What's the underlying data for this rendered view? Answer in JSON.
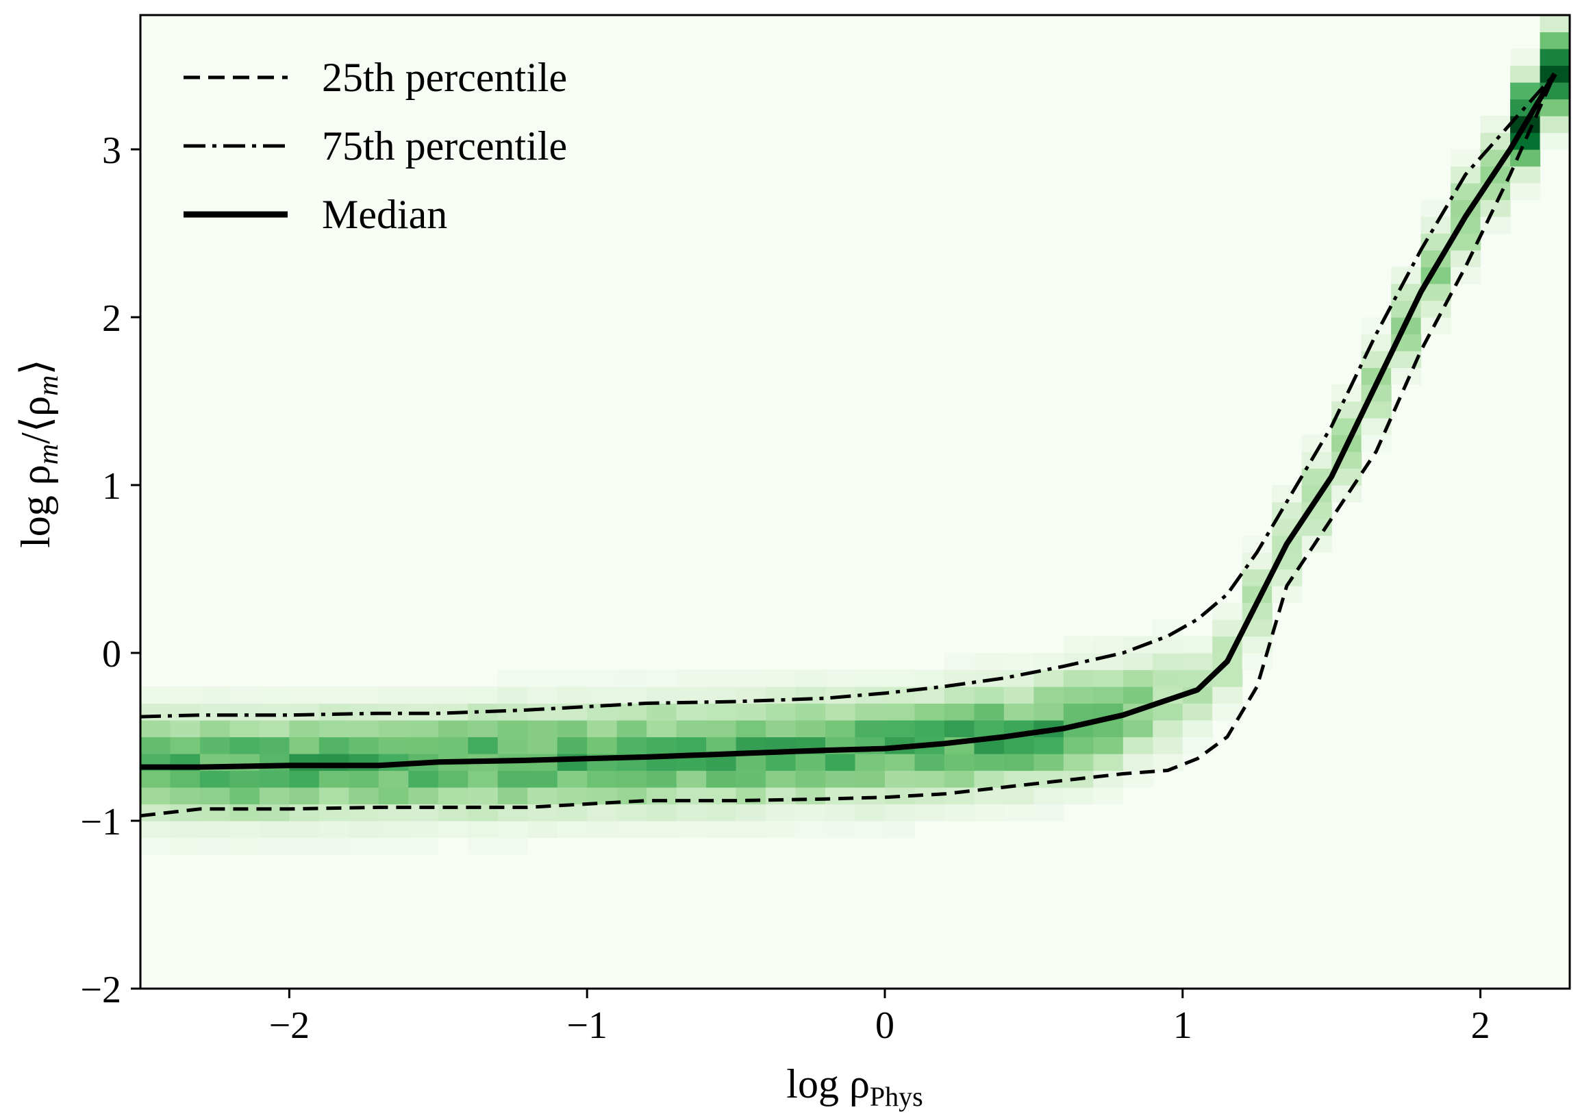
{
  "chart_data": {
    "type": "heatmap",
    "title": "",
    "xlabel": {
      "base": "log ρ",
      "subscript": "Phys"
    },
    "ylabel": {
      "prefix": "log ρ",
      "sub1": "m",
      "mid": "/⟨ρ",
      "sub2": "m",
      "suffix": "⟩"
    },
    "xlim": [
      -2.5,
      2.3
    ],
    "ylim": [
      -2,
      3.8
    ],
    "xticks": [
      {
        "value": -2,
        "label": "−2"
      },
      {
        "value": -1,
        "label": "−1"
      },
      {
        "value": 0,
        "label": "0"
      },
      {
        "value": 1,
        "label": "1"
      },
      {
        "value": 2,
        "label": "2"
      }
    ],
    "yticks": [
      {
        "value": -2,
        "label": "−2"
      },
      {
        "value": -1,
        "label": "−1"
      },
      {
        "value": 0,
        "label": "0"
      },
      {
        "value": 1,
        "label": "1"
      },
      {
        "value": 2,
        "label": "2"
      },
      {
        "value": 3,
        "label": "3"
      }
    ],
    "grid": false,
    "legend_position": "top-left",
    "colormap": "Greens",
    "background_color": "#f7fcf5",
    "bins": {
      "x_step": 0.1,
      "y_step": 0.1
    },
    "series": [
      {
        "name": "25th percentile",
        "style": "dashed",
        "x": [
          -2.5,
          -2.3,
          -2.0,
          -1.7,
          -1.5,
          -1.2,
          -1.0,
          -0.8,
          -0.5,
          -0.2,
          0.0,
          0.2,
          0.4,
          0.6,
          0.8,
          0.95,
          1.05,
          1.15,
          1.25,
          1.35,
          1.5,
          1.65,
          1.8,
          1.95,
          2.1,
          2.25
        ],
        "values": [
          -0.97,
          -0.93,
          -0.93,
          -0.92,
          -0.92,
          -0.92,
          -0.9,
          -0.88,
          -0.88,
          -0.87,
          -0.86,
          -0.84,
          -0.8,
          -0.76,
          -0.72,
          -0.7,
          -0.63,
          -0.5,
          -0.2,
          0.4,
          0.8,
          1.2,
          1.8,
          2.3,
          2.85,
          3.45
        ]
      },
      {
        "name": "75th percentile",
        "style": "dashdot",
        "x": [
          -2.5,
          -2.3,
          -2.0,
          -1.7,
          -1.5,
          -1.2,
          -1.0,
          -0.8,
          -0.5,
          -0.2,
          0.0,
          0.2,
          0.4,
          0.6,
          0.8,
          0.95,
          1.05,
          1.15,
          1.25,
          1.35,
          1.5,
          1.65,
          1.8,
          1.95,
          2.1,
          2.25
        ],
        "values": [
          -0.38,
          -0.37,
          -0.37,
          -0.36,
          -0.36,
          -0.34,
          -0.32,
          -0.3,
          -0.29,
          -0.27,
          -0.24,
          -0.2,
          -0.15,
          -0.08,
          0.0,
          0.1,
          0.2,
          0.35,
          0.6,
          0.9,
          1.35,
          1.9,
          2.4,
          2.85,
          3.15,
          3.45
        ]
      },
      {
        "name": "Median",
        "style": "solid",
        "x": [
          -2.5,
          -2.3,
          -2.0,
          -1.7,
          -1.5,
          -1.2,
          -1.0,
          -0.8,
          -0.5,
          -0.2,
          0.0,
          0.2,
          0.4,
          0.6,
          0.8,
          0.95,
          1.05,
          1.15,
          1.25,
          1.35,
          1.5,
          1.65,
          1.8,
          1.95,
          2.1,
          2.25
        ],
        "values": [
          -0.68,
          -0.68,
          -0.67,
          -0.67,
          -0.65,
          -0.64,
          -0.63,
          -0.62,
          -0.6,
          -0.58,
          -0.57,
          -0.54,
          -0.5,
          -0.45,
          -0.37,
          -0.28,
          -0.22,
          -0.05,
          0.3,
          0.65,
          1.05,
          1.6,
          2.15,
          2.6,
          3.0,
          3.45
        ]
      }
    ]
  }
}
